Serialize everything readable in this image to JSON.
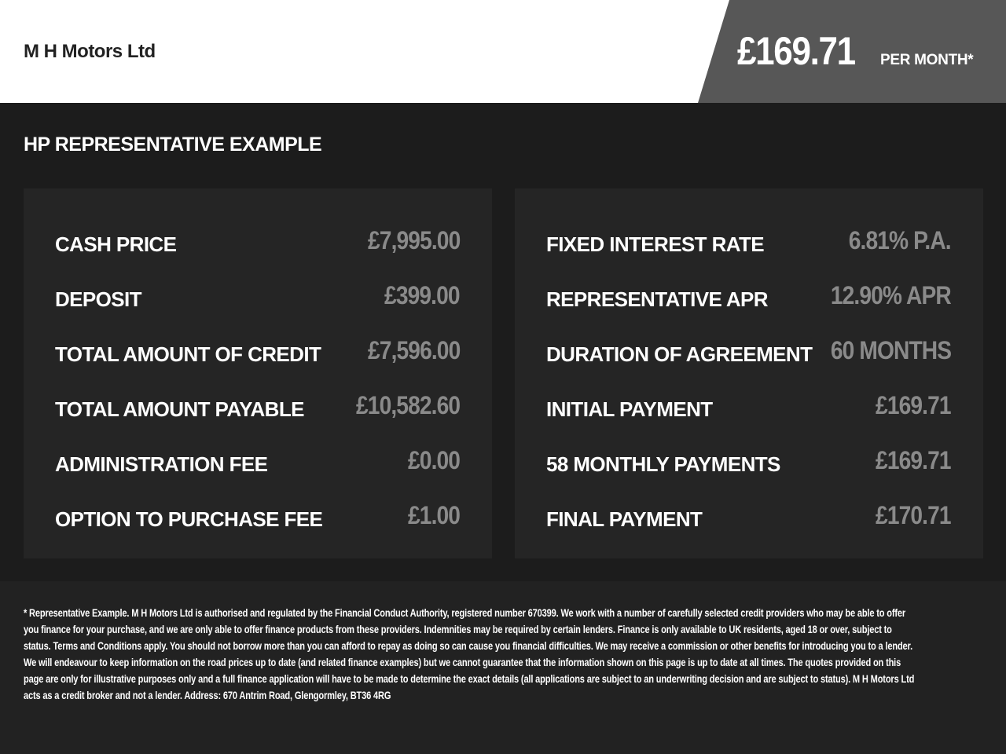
{
  "header": {
    "dealer": "M H Motors Ltd",
    "monthly_price": "£169.71",
    "per_month": "PER MONTH*"
  },
  "section_title": "HP REPRESENTATIVE EXAMPLE",
  "left": [
    {
      "label": "CASH PRICE",
      "value": "£7,995.00"
    },
    {
      "label": "DEPOSIT",
      "value": "£399.00"
    },
    {
      "label": "TOTAL AMOUNT OF CREDIT",
      "value": "£7,596.00"
    },
    {
      "label": "TOTAL AMOUNT PAYABLE",
      "value": "£10,582.60"
    },
    {
      "label": "ADMINISTRATION FEE",
      "value": "£0.00"
    },
    {
      "label": "OPTION TO PURCHASE FEE",
      "value": "£1.00"
    }
  ],
  "right": [
    {
      "label": "FIXED INTEREST RATE",
      "value": "6.81% P.A."
    },
    {
      "label": "REPRESENTATIVE APR",
      "value": "12.90% APR"
    },
    {
      "label": "DURATION OF AGREEMENT",
      "value": "60 MONTHS"
    },
    {
      "label": "INITIAL PAYMENT",
      "value": "£169.71"
    },
    {
      "label": "58 MONTHLY PAYMENTS",
      "value": "£169.71"
    },
    {
      "label": "FINAL PAYMENT",
      "value": "£170.71"
    }
  ],
  "disclaimer": "* Representative Example. M H Motors Ltd is authorised and regulated by the Financial Conduct Authority, registered number 670399. We work with a number of carefully selected credit providers who may be able to offer you finance for your purchase, and we are only able to offer finance products from these providers. Indemnities may be required by certain lenders. Finance is only available to UK residents, aged 18 or over, subject to status. Terms and Conditions apply. You should not borrow more than you can afford to repay as doing so can cause you financial difficulties. We may receive a commission or other benefits for introducing you to a lender. We will endeavour to keep information on the road prices up to date (and related finance examples) but we cannot guarantee that the information shown on this page is up to date at all times. The quotes provided on this page are only for illustrative purposes only and a full finance application will have to be made to determine the exact details (all applications are subject to an underwriting decision and are subject to status). M H Motors Ltd acts as a credit broker and not a lender. Address: 670 Antrim Road, Glengormley, BT36 4RG"
}
